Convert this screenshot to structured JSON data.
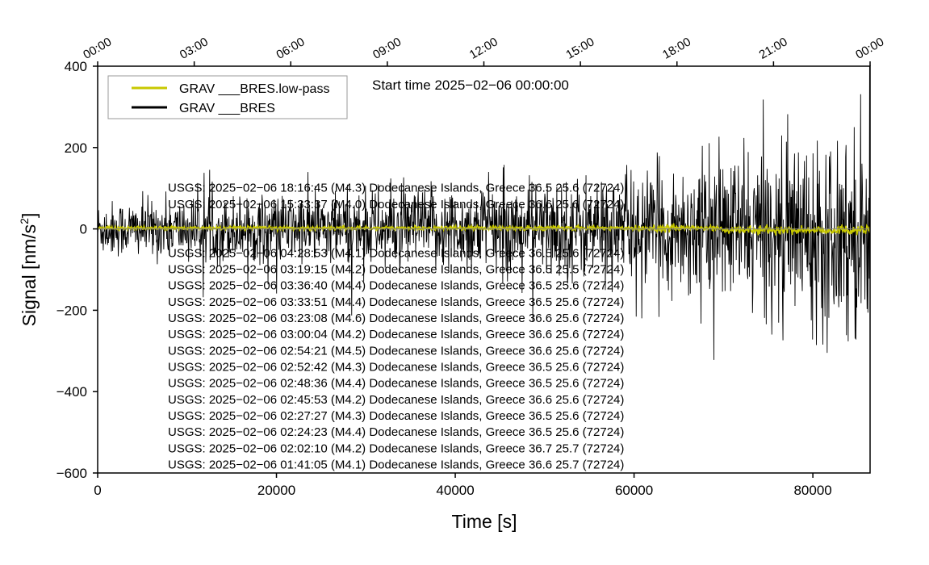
{
  "chart_data": {
    "type": "line",
    "xlabel": "Time [s]",
    "ylabel": "Signal [nm/s²]",
    "ylabel_base": "Signal [nm/s",
    "ylabel_sup": "2",
    "ylabel_end": "]",
    "xlim": [
      0,
      86400
    ],
    "ylim": [
      -600,
      400
    ],
    "x_ticks": [
      0,
      20000,
      40000,
      60000,
      80000
    ],
    "x_tick_labels": [
      "0",
      "20000",
      "40000",
      "60000",
      "80000"
    ],
    "y_ticks": [
      -600,
      -400,
      -200,
      0,
      200,
      400
    ],
    "y_tick_labels": [
      "−600",
      "−400",
      "−200",
      "0",
      "200",
      "400"
    ],
    "top_axis_ticks_hours": [
      0,
      3,
      6,
      9,
      12,
      15,
      18,
      21,
      24
    ],
    "top_axis_labels": [
      "00:00",
      "03:00",
      "06:00",
      "09:00",
      "12:00",
      "15:00",
      "18:00",
      "21:00",
      "00:00"
    ],
    "start_time_text": "Start time 2025−02−06 00:00:00",
    "legend_position": "top-left",
    "series": [
      {
        "name": "GRAV ___BRES.low-pass",
        "color": "#c8c800",
        "amplitude_envelope": [
          {
            "x": 0,
            "amp": 4
          },
          {
            "x": 30000,
            "amp": 4
          },
          {
            "x": 60000,
            "amp": 5
          },
          {
            "x": 62000,
            "amp": 6
          },
          {
            "x": 63300,
            "amp": 18
          },
          {
            "x": 64500,
            "amp": 7
          },
          {
            "x": 75000,
            "amp": 8
          },
          {
            "x": 86400,
            "amp": 10
          }
        ]
      },
      {
        "name": "GRAV ___BRES",
        "color": "#000000",
        "amplitude_envelope": [
          {
            "x": 0,
            "amp": 60
          },
          {
            "x": 20000,
            "amp": 75
          },
          {
            "x": 40000,
            "amp": 90
          },
          {
            "x": 60000,
            "amp": 120
          },
          {
            "x": 70000,
            "amp": 160
          },
          {
            "x": 80000,
            "amp": 200
          },
          {
            "x": 86400,
            "amp": 240
          }
        ]
      }
    ],
    "annotations": [
      {
        "text": "USGS: 2025−02−06 18:16:45 (M4.3) Dodecanese Islands, Greece 36.5 25.6 (72724)",
        "y": 101
      },
      {
        "text": "USGS: 2025−02−06 15:33:37 (M4.0) Dodecanese Islands, Greece 36.6 25.6 (72724)",
        "y": 61
      },
      {
        "text": "USGS: 2025−02−06 04:28:53 (M4.1) Dodecanese Islands, Greece 36.5 25.6 (72724)",
        "y": -59
      },
      {
        "text": "USGS: 2025−02−06 03:19:15 (M4.2) Dodecanese Islands, Greece 36.5 25.5 (72724)",
        "y": -99
      },
      {
        "text": "USGS: 2025−02−06 03:36:40 (M4.4) Dodecanese Islands, Greece 36.5 25.6 (72724)",
        "y": -139
      },
      {
        "text": "USGS: 2025−02−06 03:33:51 (M4.4) Dodecanese Islands, Greece 36.5 25.6 (72724)",
        "y": -179
      },
      {
        "text": "USGS: 2025−02−06 03:23:08 (M4.6) Dodecanese Islands, Greece 36.6 25.6 (72724)",
        "y": -219
      },
      {
        "text": "USGS: 2025−02−06 03:00:04 (M4.2) Dodecanese Islands, Greece 36.6 25.6 (72724)",
        "y": -259
      },
      {
        "text": "USGS: 2025−02−06 02:54:21 (M4.5) Dodecanese Islands, Greece 36.6 25.6 (72724)",
        "y": -299
      },
      {
        "text": "USGS: 2025−02−06 02:52:42 (M4.3) Dodecanese Islands, Greece 36.5 25.6 (72724)",
        "y": -339
      },
      {
        "text": "USGS: 2025−02−06 02:48:36 (M4.4) Dodecanese Islands, Greece 36.5 25.6 (72724)",
        "y": -379
      },
      {
        "text": "USGS: 2025−02−06 02:45:53 (M4.2) Dodecanese Islands, Greece 36.6 25.6 (72724)",
        "y": -419
      },
      {
        "text": "USGS: 2025−02−06 02:27:27 (M4.3) Dodecanese Islands, Greece 36.5 25.6 (72724)",
        "y": -459
      },
      {
        "text": "USGS: 2025−02−06 02:24:23 (M4.4) Dodecanese Islands, Greece 36.5 25.6 (72724)",
        "y": -499
      },
      {
        "text": "USGS: 2025−02−06 02:02:10 (M4.2) Dodecanese Islands, Greece 36.7 25.7 (72724)",
        "y": -539
      },
      {
        "text": "USGS: 2025−02−06 01:41:05 (M4.1) Dodecanese Islands, Greece 36.6 25.7 (72724)",
        "y": -579
      }
    ]
  }
}
